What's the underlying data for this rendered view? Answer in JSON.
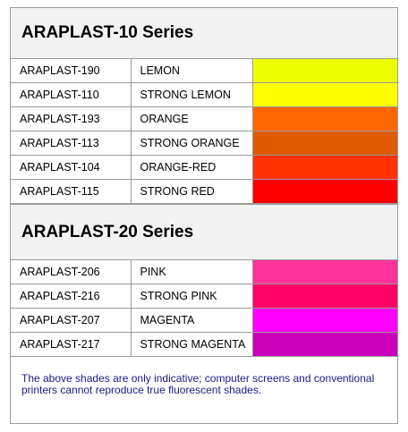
{
  "series": [
    {
      "title": "ARAPLAST-10 Series",
      "rows": [
        {
          "code": "ARAPLAST-190",
          "name": "LEMON",
          "color": "#eeff00"
        },
        {
          "code": "ARAPLAST-110",
          "name": "STRONG LEMON",
          "color": "#ffff00"
        },
        {
          "code": "ARAPLAST-193",
          "name": "ORANGE",
          "color": "#ff6600"
        },
        {
          "code": "ARAPLAST-113",
          "name": "STRONG ORANGE",
          "color": "#e05a00"
        },
        {
          "code": "ARAPLAST-104",
          "name": "ORANGE-RED",
          "color": "#ff3300"
        },
        {
          "code": "ARAPLAST-115",
          "name": "STRONG RED",
          "color": "#ff0000"
        }
      ]
    },
    {
      "title": "ARAPLAST-20 Series",
      "rows": [
        {
          "code": "ARAPLAST-206",
          "name": "PINK",
          "color": "#ff3399"
        },
        {
          "code": "ARAPLAST-216",
          "name": "STRONG PINK",
          "color": "#ff0066"
        },
        {
          "code": "ARAPLAST-207",
          "name": "MAGENTA",
          "color": "#ff00ff"
        },
        {
          "code": "ARAPLAST-217",
          "name": "STRONG MAGENTA",
          "color": "#cc00bb"
        }
      ]
    }
  ],
  "note": "The above shades are only indicative; computer screens and conventional printers cannot reproduce true fluorescent shades."
}
